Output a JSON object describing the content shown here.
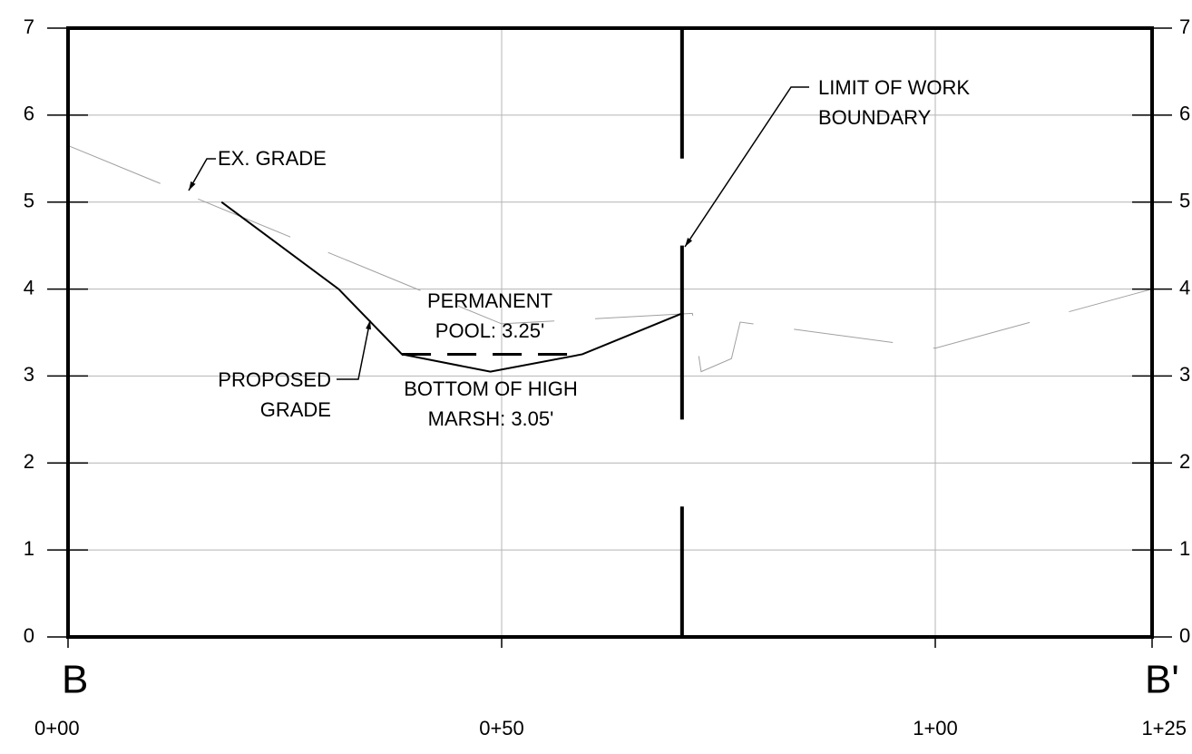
{
  "chart_data": {
    "type": "line",
    "x_label_left": "B",
    "x_label_right": "B'",
    "xlim": [
      0,
      125
    ],
    "xticks": [
      {
        "value": 0,
        "label": "0+00"
      },
      {
        "value": 50,
        "label": "0+50"
      },
      {
        "value": 100,
        "label": "1+00"
      },
      {
        "value": 125,
        "label": "1+25"
      }
    ],
    "ylim": [
      0,
      7
    ],
    "yticks": [
      0,
      1,
      2,
      3,
      4,
      5,
      6,
      7
    ],
    "y2lim": [
      0,
      7
    ],
    "y2ticks": [
      0,
      1,
      2,
      3,
      4,
      5,
      6,
      7
    ],
    "grid": true,
    "series": [
      {
        "color": "#a0a0a0",
        "dashed": true,
        "x": [
          0,
          50,
          72,
          73,
          76.5,
          77.5,
          100,
          125
        ],
        "values": [
          5.65,
          3.6,
          3.72,
          3.05,
          3.2,
          3.62,
          3.32,
          4.0
        ]
      },
      {
        "color": "#000000",
        "dashed": false,
        "x": [
          17.7,
          31.2,
          38.5,
          48.7,
          59.3,
          70.8
        ],
        "values": [
          5.0,
          4.0,
          3.25,
          3.05,
          3.25,
          3.72
        ]
      },
      {
        "color": "#000000",
        "dashed": true,
        "x": [
          38.5,
          59.3
        ],
        "values": [
          3.25,
          3.25
        ]
      }
    ],
    "boundary_x": 70.8,
    "annotations": [
      {
        "lines": [
          "EX. GRADE"
        ]
      },
      {
        "lines": [
          "PERMANENT",
          "POOL: 3.25'"
        ]
      },
      {
        "lines": [
          "BOTTOM OF HIGH",
          "MARSH: 3.05'"
        ]
      },
      {
        "lines": [
          "PROPOSED",
          "GRADE"
        ]
      },
      {
        "lines": [
          "LIMIT OF WORK",
          "BOUNDARY"
        ]
      }
    ]
  }
}
